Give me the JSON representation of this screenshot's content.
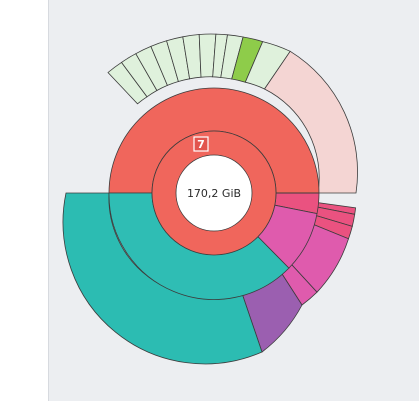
{
  "center": {
    "size_label": "170,2 GiB"
  },
  "badge": {
    "number": "7"
  },
  "colors": {
    "panel_background": "#eceef1",
    "root": "#f0665c",
    "teal": "#2fbdb4",
    "light_green": "#dff1dc",
    "bright_green": "#8ecc4a",
    "pink_light": "#f4d5d3",
    "magenta": "#e05cab",
    "purple": "#9b5fb0",
    "pink_red": "#ea5280"
  },
  "icons": {
    "badge_icon": "number-seven-badge-icon"
  }
}
